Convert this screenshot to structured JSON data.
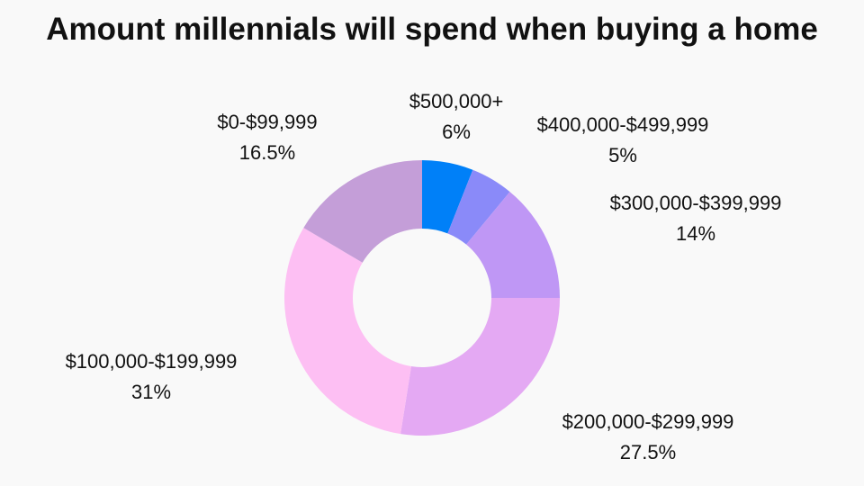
{
  "chart_data": {
    "type": "pie",
    "donut": true,
    "title": "Amount millennials will spend when buying a home",
    "categories": [
      "$500,000+",
      "$400,000-$499,999",
      "$300,000-$399,999",
      "$200,000-$299,999",
      "$100,000-$199,999",
      "$0-$99,999"
    ],
    "values": [
      6,
      5,
      14,
      27.5,
      31,
      16.5
    ],
    "value_labels": [
      "6%",
      "5%",
      "14%",
      "27.5%",
      "31%",
      "16.5%"
    ],
    "colors": [
      "#0080f8",
      "#8a8af9",
      "#bf97f5",
      "#e4a9f3",
      "#fdbff3",
      "#c49ed8"
    ],
    "start_angle": "top",
    "direction": "clockwise",
    "legend": "none"
  }
}
